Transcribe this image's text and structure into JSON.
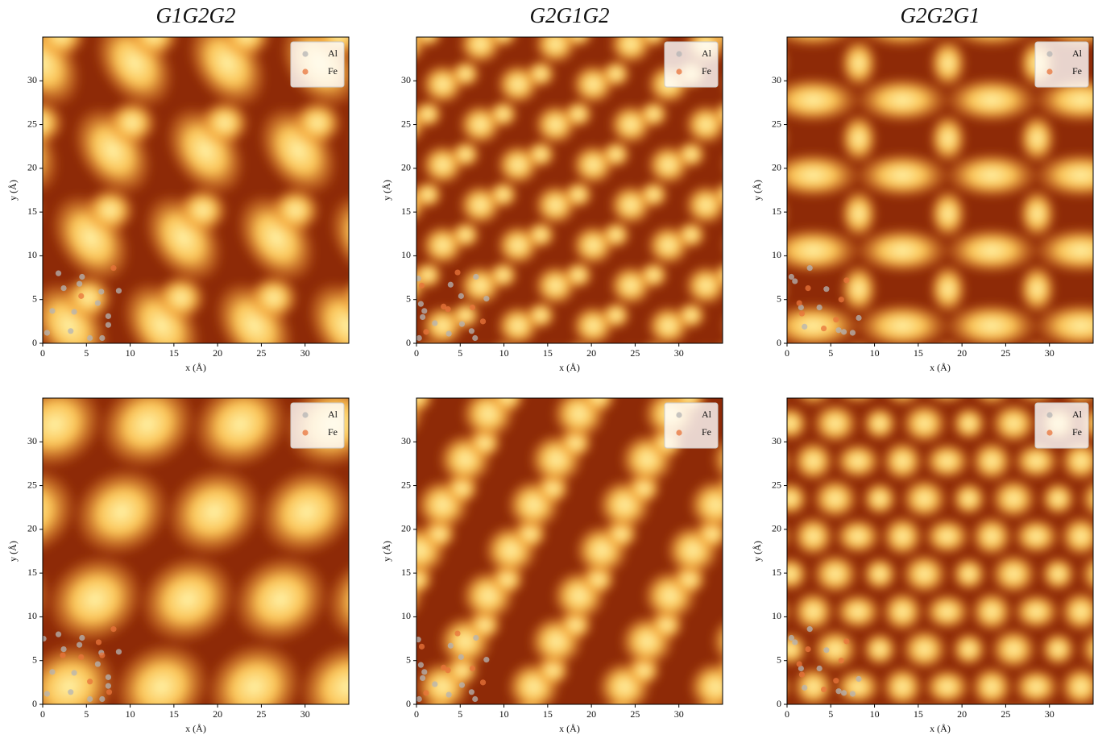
{
  "chart_data": [
    {
      "type": "scatter",
      "title": "G1G2G2",
      "xlabel": "x (Å)",
      "ylabel": "y (Å)",
      "xlim": [
        0,
        35
      ],
      "ylim": [
        0,
        35
      ],
      "xticks": [
        0,
        5,
        10,
        15,
        20,
        25,
        30
      ],
      "yticks": [
        0,
        5,
        10,
        15,
        20,
        25,
        30
      ],
      "legend": "upper right",
      "series": [
        {
          "name": "Al",
          "color": "#b4b4b4",
          "x": [
            1.1,
            1.8,
            2.4,
            3.2,
            3.6,
            4.5,
            4.2,
            5.4,
            6.3,
            6.7,
            6.8,
            7.5,
            7.5,
            8.7,
            0.5
          ],
          "y": [
            3.7,
            8.0,
            6.3,
            1.4,
            3.6,
            7.6,
            6.8,
            0.6,
            4.6,
            5.9,
            0.6,
            3.1,
            2.1,
            6.0,
            1.2
          ]
        },
        {
          "name": "Fe",
          "color": "#e8743b",
          "x": [
            4.4,
            8.1
          ],
          "y": [
            5.4,
            8.6
          ]
        }
      ]
    },
    {
      "type": "scatter",
      "title": "G2G1G2",
      "xlabel": "x (Å)",
      "ylabel": "y (Å)",
      "xlim": [
        0,
        35
      ],
      "ylim": [
        0,
        35
      ],
      "xticks": [
        0,
        5,
        10,
        15,
        20,
        25,
        30
      ],
      "yticks": [
        0,
        5,
        10,
        15,
        20,
        25,
        30
      ],
      "legend": "upper right",
      "series": [
        {
          "name": "Al",
          "color": "#b4b4b4",
          "x": [
            0.2,
            0.5,
            0.9,
            0.7,
            2.1,
            3.7,
            3.9,
            5.1,
            5.2,
            6.3,
            6.7,
            6.8,
            8.0,
            0.3
          ],
          "y": [
            7.4,
            4.5,
            3.7,
            3.0,
            2.3,
            1.1,
            6.7,
            5.4,
            2.2,
            1.4,
            0.6,
            7.6,
            5.1,
            0.6
          ]
        },
        {
          "name": "Fe",
          "color": "#e8743b",
          "x": [
            0.6,
            3.1,
            3.6,
            4.7,
            6.4,
            1.1,
            7.6
          ],
          "y": [
            6.6,
            4.2,
            3.9,
            8.1,
            4.1,
            1.3,
            2.5
          ]
        }
      ]
    },
    {
      "type": "scatter",
      "title": "G2G2G1",
      "xlabel": "x (Å)",
      "ylabel": "y (Å)",
      "xlim": [
        0,
        35
      ],
      "ylim": [
        0,
        35
      ],
      "xticks": [
        0,
        5,
        10,
        15,
        20,
        25,
        30
      ],
      "yticks": [
        0,
        5,
        10,
        15,
        20,
        25,
        30
      ],
      "legend": "upper right",
      "series": [
        {
          "name": "Al",
          "color": "#b4b4b4",
          "x": [
            0.5,
            0.9,
            1.6,
            2.6,
            3.7,
            4.5,
            5.9,
            6.5,
            7.5,
            8.2,
            2.0
          ],
          "y": [
            7.6,
            7.1,
            4.1,
            8.6,
            4.1,
            6.2,
            1.5,
            1.3,
            1.2,
            2.9,
            1.9
          ]
        },
        {
          "name": "Fe",
          "color": "#e8743b",
          "x": [
            1.4,
            2.4,
            4.2,
            5.6,
            6.2,
            6.8,
            1.7
          ],
          "y": [
            4.6,
            6.3,
            1.7,
            2.7,
            5.0,
            7.2,
            3.4
          ]
        }
      ]
    },
    {
      "type": "scatter",
      "xlabel": "x (Å)",
      "ylabel": "y (Å)",
      "xlim": [
        0,
        35
      ],
      "ylim": [
        0,
        35
      ],
      "xticks": [
        0,
        5,
        10,
        15,
        20,
        25,
        30
      ],
      "yticks": [
        0,
        5,
        10,
        15,
        20,
        25,
        30
      ],
      "legend": "upper right",
      "series": [
        {
          "name": "Al",
          "color": "#b4b4b4",
          "x": [
            1.1,
            1.8,
            2.4,
            3.2,
            3.6,
            4.5,
            4.2,
            5.4,
            6.3,
            6.7,
            6.8,
            7.5,
            7.5,
            8.7,
            0.5,
            0.1
          ],
          "y": [
            3.7,
            8.0,
            6.3,
            1.4,
            3.6,
            7.6,
            6.8,
            0.6,
            4.6,
            5.9,
            0.6,
            3.1,
            2.1,
            6.0,
            1.2,
            7.5
          ]
        },
        {
          "name": "Fe",
          "color": "#e8743b",
          "x": [
            4.4,
            8.1,
            2.3,
            6.4,
            5.4,
            6.8,
            7.6
          ],
          "y": [
            5.4,
            8.6,
            5.6,
            7.1,
            2.6,
            5.6,
            1.4
          ]
        }
      ]
    },
    {
      "type": "scatter",
      "xlabel": "x (Å)",
      "ylabel": "y (Å)",
      "xlim": [
        0,
        35
      ],
      "ylim": [
        0,
        35
      ],
      "xticks": [
        0,
        5,
        10,
        15,
        20,
        25,
        30
      ],
      "yticks": [
        0,
        5,
        10,
        15,
        20,
        25,
        30
      ],
      "legend": "upper right",
      "series": [
        {
          "name": "Al",
          "color": "#b4b4b4",
          "x": [
            0.2,
            0.5,
            0.9,
            0.7,
            2.1,
            3.7,
            3.9,
            5.1,
            5.2,
            6.3,
            6.7,
            6.8,
            8.0,
            0.3
          ],
          "y": [
            7.4,
            4.5,
            3.7,
            3.0,
            2.3,
            1.1,
            6.7,
            5.4,
            2.2,
            1.4,
            0.6,
            7.6,
            5.1,
            0.6
          ]
        },
        {
          "name": "Fe",
          "color": "#e8743b",
          "x": [
            0.6,
            3.1,
            3.6,
            4.7,
            6.4,
            1.1,
            7.6
          ],
          "y": [
            6.6,
            4.2,
            3.9,
            8.1,
            4.1,
            1.3,
            2.5
          ]
        }
      ]
    },
    {
      "type": "scatter",
      "xlabel": "x (Å)",
      "ylabel": "y (Å)",
      "xlim": [
        0,
        35
      ],
      "ylim": [
        0,
        35
      ],
      "xticks": [
        0,
        5,
        10,
        15,
        20,
        25,
        30
      ],
      "yticks": [
        0,
        5,
        10,
        15,
        20,
        25,
        30
      ],
      "legend": "upper right",
      "series": [
        {
          "name": "Al",
          "color": "#b4b4b4",
          "x": [
            0.5,
            0.9,
            1.6,
            2.6,
            3.7,
            4.5,
            5.9,
            6.5,
            7.5,
            8.2,
            2.0
          ],
          "y": [
            7.6,
            7.1,
            4.1,
            8.6,
            4.1,
            6.2,
            1.5,
            1.3,
            1.2,
            2.9,
            1.9
          ]
        },
        {
          "name": "Fe",
          "color": "#e8743b",
          "x": [
            1.4,
            2.4,
            4.2,
            5.6,
            6.2,
            6.8,
            1.7
          ],
          "y": [
            4.6,
            6.3,
            1.7,
            2.7,
            5.0,
            7.2,
            3.4
          ]
        }
      ]
    }
  ]
}
